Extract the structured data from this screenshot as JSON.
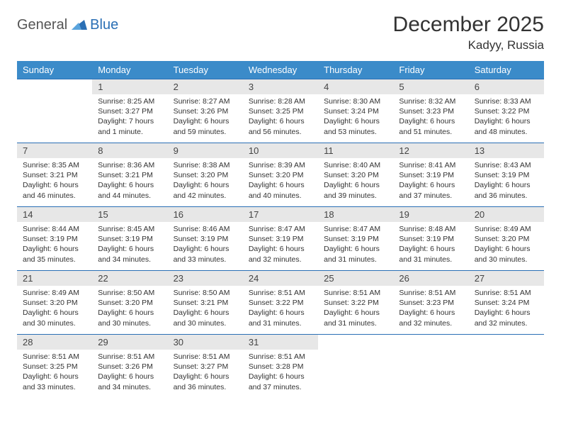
{
  "logo": {
    "text1": "General",
    "text2": "Blue"
  },
  "title": "December 2025",
  "location": "Kadyy, Russia",
  "weekdays": [
    "Sunday",
    "Monday",
    "Tuesday",
    "Wednesday",
    "Thursday",
    "Friday",
    "Saturday"
  ],
  "colors": {
    "headerBg": "#3b8bc9",
    "headerText": "#ffffff",
    "rule": "#2a6fb5",
    "dayNumBg": "#e7e7e7",
    "text": "#333333"
  },
  "weeks": [
    [
      {
        "n": "",
        "sunrise": "",
        "sunset": "",
        "daylight": ""
      },
      {
        "n": "1",
        "sunrise": "Sunrise: 8:25 AM",
        "sunset": "Sunset: 3:27 PM",
        "daylight": "Daylight: 7 hours and 1 minute."
      },
      {
        "n": "2",
        "sunrise": "Sunrise: 8:27 AM",
        "sunset": "Sunset: 3:26 PM",
        "daylight": "Daylight: 6 hours and 59 minutes."
      },
      {
        "n": "3",
        "sunrise": "Sunrise: 8:28 AM",
        "sunset": "Sunset: 3:25 PM",
        "daylight": "Daylight: 6 hours and 56 minutes."
      },
      {
        "n": "4",
        "sunrise": "Sunrise: 8:30 AM",
        "sunset": "Sunset: 3:24 PM",
        "daylight": "Daylight: 6 hours and 53 minutes."
      },
      {
        "n": "5",
        "sunrise": "Sunrise: 8:32 AM",
        "sunset": "Sunset: 3:23 PM",
        "daylight": "Daylight: 6 hours and 51 minutes."
      },
      {
        "n": "6",
        "sunrise": "Sunrise: 8:33 AM",
        "sunset": "Sunset: 3:22 PM",
        "daylight": "Daylight: 6 hours and 48 minutes."
      }
    ],
    [
      {
        "n": "7",
        "sunrise": "Sunrise: 8:35 AM",
        "sunset": "Sunset: 3:21 PM",
        "daylight": "Daylight: 6 hours and 46 minutes."
      },
      {
        "n": "8",
        "sunrise": "Sunrise: 8:36 AM",
        "sunset": "Sunset: 3:21 PM",
        "daylight": "Daylight: 6 hours and 44 minutes."
      },
      {
        "n": "9",
        "sunrise": "Sunrise: 8:38 AM",
        "sunset": "Sunset: 3:20 PM",
        "daylight": "Daylight: 6 hours and 42 minutes."
      },
      {
        "n": "10",
        "sunrise": "Sunrise: 8:39 AM",
        "sunset": "Sunset: 3:20 PM",
        "daylight": "Daylight: 6 hours and 40 minutes."
      },
      {
        "n": "11",
        "sunrise": "Sunrise: 8:40 AM",
        "sunset": "Sunset: 3:20 PM",
        "daylight": "Daylight: 6 hours and 39 minutes."
      },
      {
        "n": "12",
        "sunrise": "Sunrise: 8:41 AM",
        "sunset": "Sunset: 3:19 PM",
        "daylight": "Daylight: 6 hours and 37 minutes."
      },
      {
        "n": "13",
        "sunrise": "Sunrise: 8:43 AM",
        "sunset": "Sunset: 3:19 PM",
        "daylight": "Daylight: 6 hours and 36 minutes."
      }
    ],
    [
      {
        "n": "14",
        "sunrise": "Sunrise: 8:44 AM",
        "sunset": "Sunset: 3:19 PM",
        "daylight": "Daylight: 6 hours and 35 minutes."
      },
      {
        "n": "15",
        "sunrise": "Sunrise: 8:45 AM",
        "sunset": "Sunset: 3:19 PM",
        "daylight": "Daylight: 6 hours and 34 minutes."
      },
      {
        "n": "16",
        "sunrise": "Sunrise: 8:46 AM",
        "sunset": "Sunset: 3:19 PM",
        "daylight": "Daylight: 6 hours and 33 minutes."
      },
      {
        "n": "17",
        "sunrise": "Sunrise: 8:47 AM",
        "sunset": "Sunset: 3:19 PM",
        "daylight": "Daylight: 6 hours and 32 minutes."
      },
      {
        "n": "18",
        "sunrise": "Sunrise: 8:47 AM",
        "sunset": "Sunset: 3:19 PM",
        "daylight": "Daylight: 6 hours and 31 minutes."
      },
      {
        "n": "19",
        "sunrise": "Sunrise: 8:48 AM",
        "sunset": "Sunset: 3:19 PM",
        "daylight": "Daylight: 6 hours and 31 minutes."
      },
      {
        "n": "20",
        "sunrise": "Sunrise: 8:49 AM",
        "sunset": "Sunset: 3:20 PM",
        "daylight": "Daylight: 6 hours and 30 minutes."
      }
    ],
    [
      {
        "n": "21",
        "sunrise": "Sunrise: 8:49 AM",
        "sunset": "Sunset: 3:20 PM",
        "daylight": "Daylight: 6 hours and 30 minutes."
      },
      {
        "n": "22",
        "sunrise": "Sunrise: 8:50 AM",
        "sunset": "Sunset: 3:20 PM",
        "daylight": "Daylight: 6 hours and 30 minutes."
      },
      {
        "n": "23",
        "sunrise": "Sunrise: 8:50 AM",
        "sunset": "Sunset: 3:21 PM",
        "daylight": "Daylight: 6 hours and 30 minutes."
      },
      {
        "n": "24",
        "sunrise": "Sunrise: 8:51 AM",
        "sunset": "Sunset: 3:22 PM",
        "daylight": "Daylight: 6 hours and 31 minutes."
      },
      {
        "n": "25",
        "sunrise": "Sunrise: 8:51 AM",
        "sunset": "Sunset: 3:22 PM",
        "daylight": "Daylight: 6 hours and 31 minutes."
      },
      {
        "n": "26",
        "sunrise": "Sunrise: 8:51 AM",
        "sunset": "Sunset: 3:23 PM",
        "daylight": "Daylight: 6 hours and 32 minutes."
      },
      {
        "n": "27",
        "sunrise": "Sunrise: 8:51 AM",
        "sunset": "Sunset: 3:24 PM",
        "daylight": "Daylight: 6 hours and 32 minutes."
      }
    ],
    [
      {
        "n": "28",
        "sunrise": "Sunrise: 8:51 AM",
        "sunset": "Sunset: 3:25 PM",
        "daylight": "Daylight: 6 hours and 33 minutes."
      },
      {
        "n": "29",
        "sunrise": "Sunrise: 8:51 AM",
        "sunset": "Sunset: 3:26 PM",
        "daylight": "Daylight: 6 hours and 34 minutes."
      },
      {
        "n": "30",
        "sunrise": "Sunrise: 8:51 AM",
        "sunset": "Sunset: 3:27 PM",
        "daylight": "Daylight: 6 hours and 36 minutes."
      },
      {
        "n": "31",
        "sunrise": "Sunrise: 8:51 AM",
        "sunset": "Sunset: 3:28 PM",
        "daylight": "Daylight: 6 hours and 37 minutes."
      },
      {
        "n": "",
        "sunrise": "",
        "sunset": "",
        "daylight": ""
      },
      {
        "n": "",
        "sunrise": "",
        "sunset": "",
        "daylight": ""
      },
      {
        "n": "",
        "sunrise": "",
        "sunset": "",
        "daylight": ""
      }
    ]
  ]
}
